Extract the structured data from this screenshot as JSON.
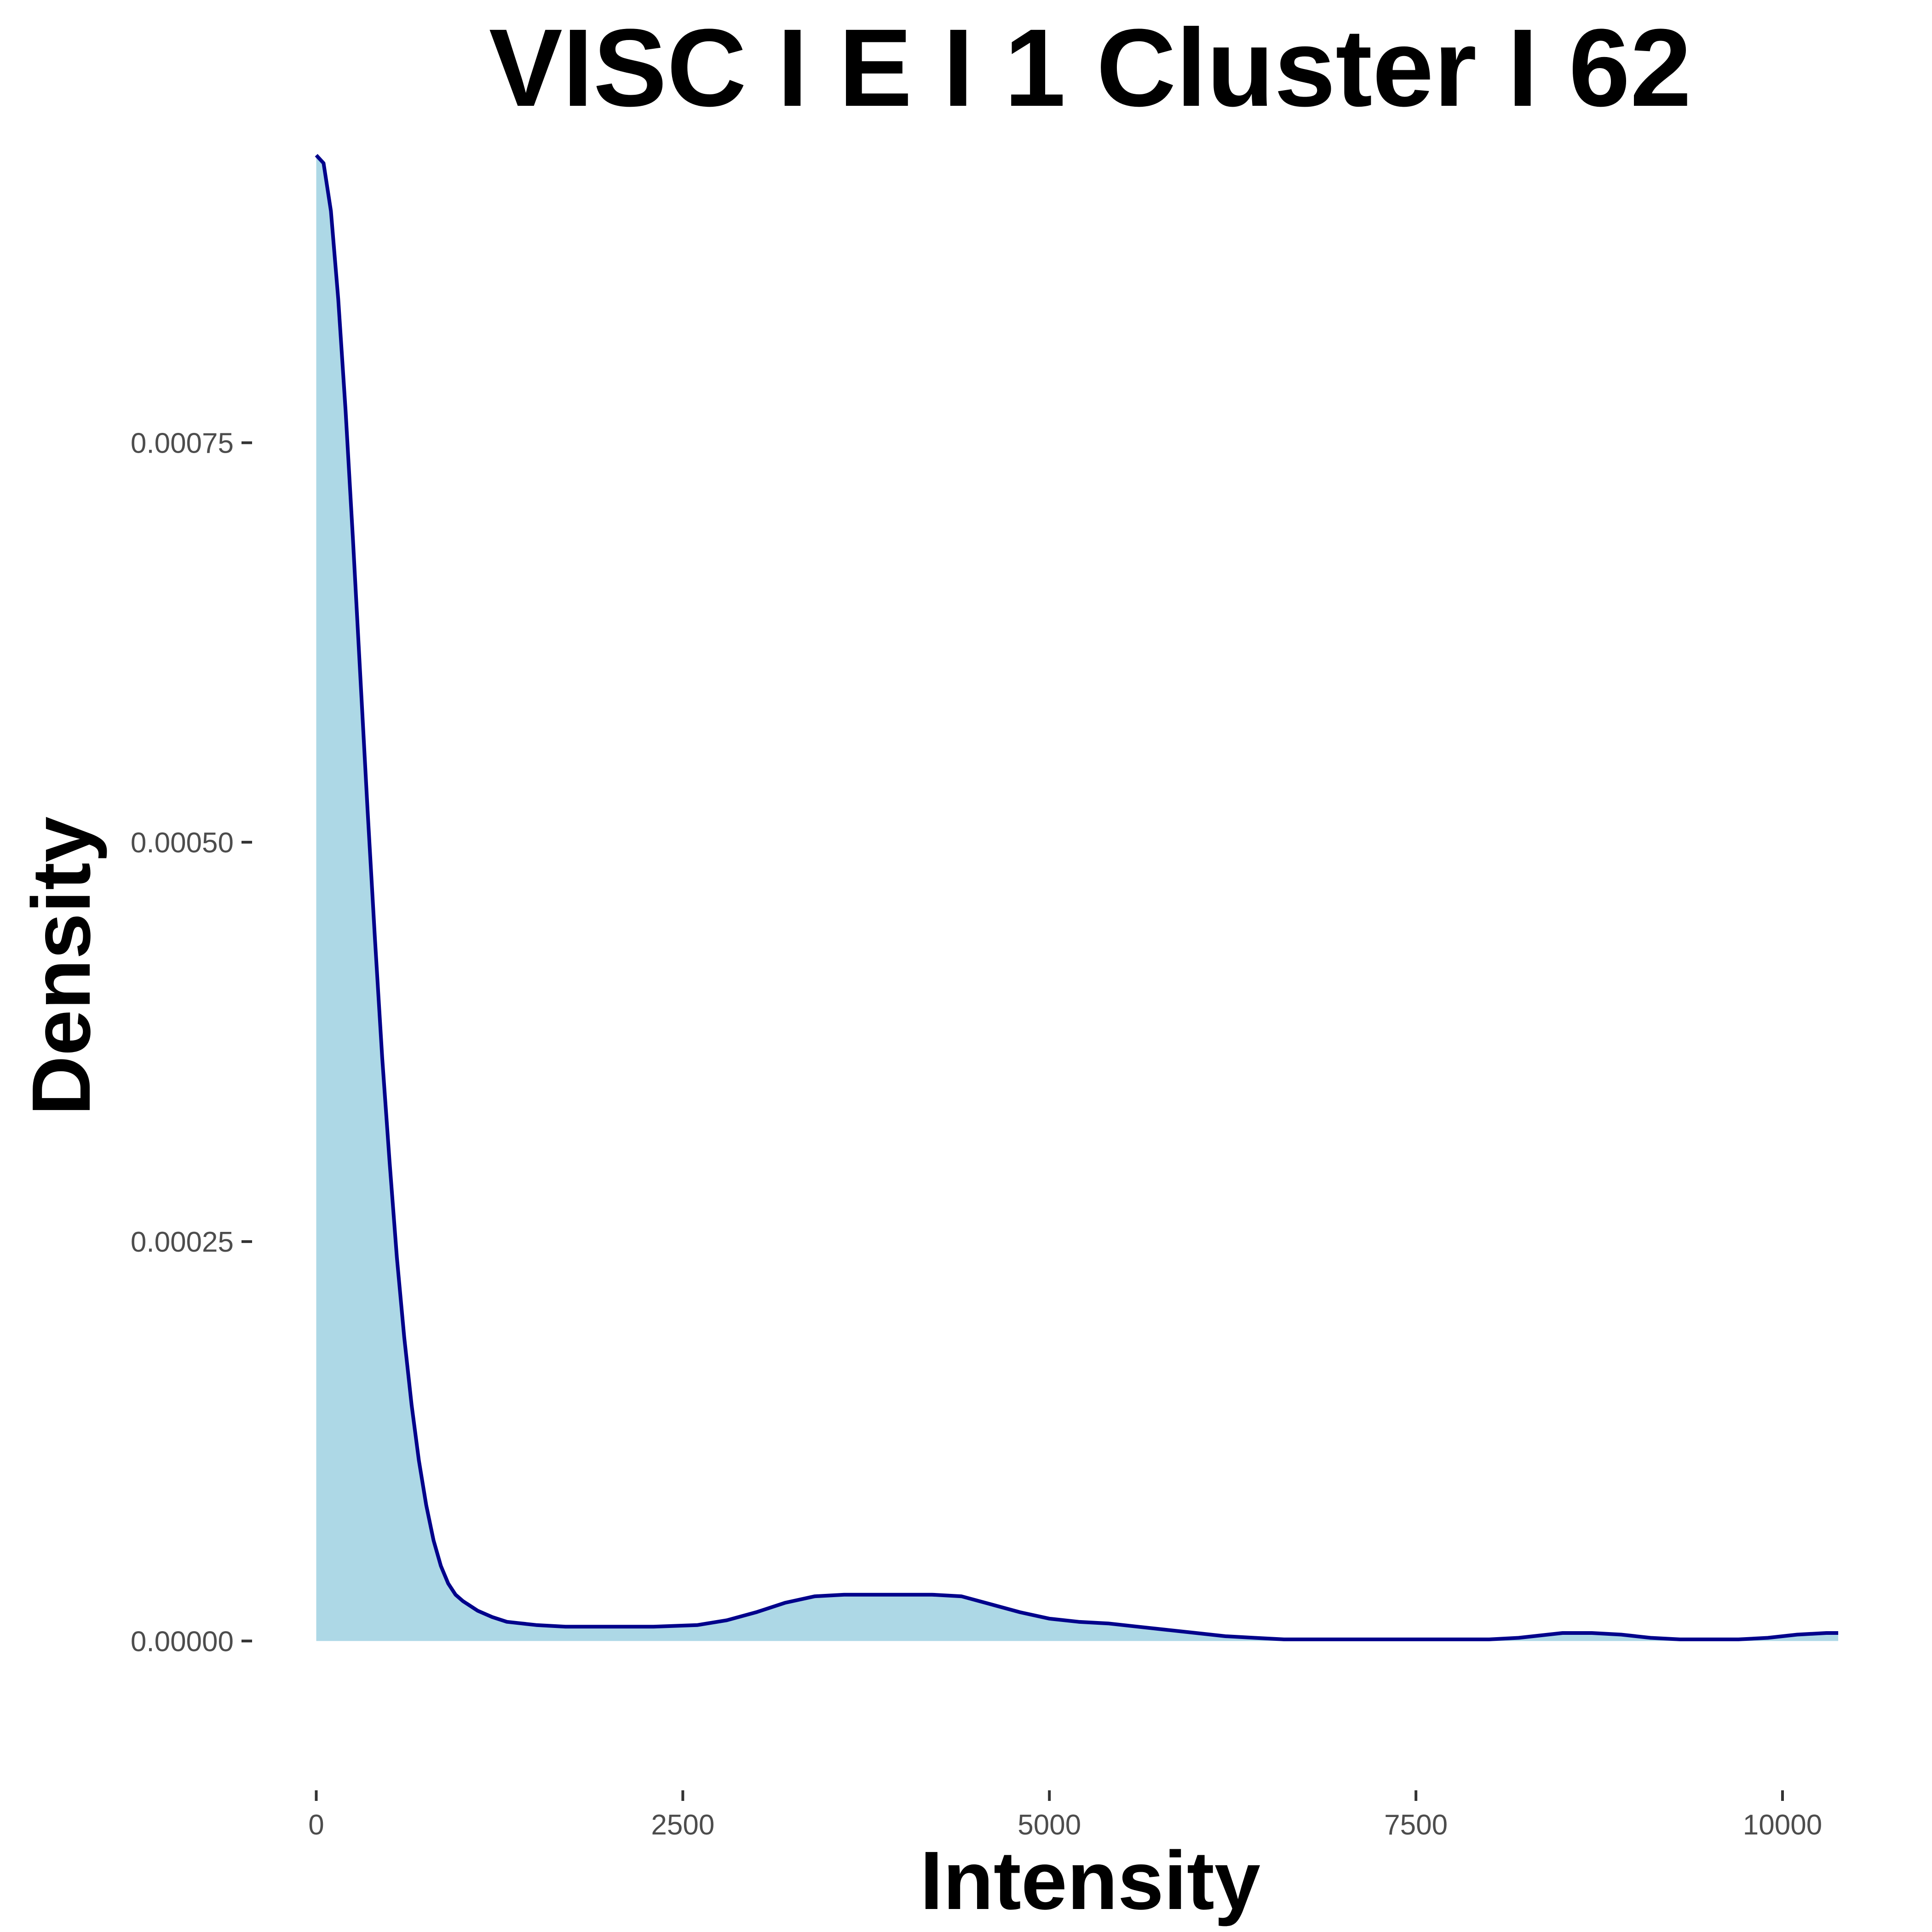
{
  "chart_data": {
    "type": "area",
    "title": "VISC I E I 1 Cluster I  62",
    "xlabel": "Intensity",
    "ylabel": "Density",
    "xlim": [
      -400,
      10800
    ],
    "ylim": [
      -9e-05,
      0.000935
    ],
    "x_ticks": [
      0,
      2500,
      5000,
      7500,
      10000
    ],
    "x_tick_labels": [
      "0",
      "2500",
      "5000",
      "7500",
      "10000"
    ],
    "y_ticks": [
      0,
      0.00025,
      0.0005,
      0.00075
    ],
    "y_tick_labels": [
      "0.00000",
      "0.00025",
      "0.00050",
      "0.00075"
    ],
    "grid": false,
    "legend": "none",
    "fill_color": "#add8e6",
    "line_color": "#00008b",
    "series": [
      {
        "x": [
          0,
          50,
          100,
          150,
          200,
          250,
          300,
          350,
          400,
          450,
          500,
          550,
          600,
          650,
          700,
          750,
          800,
          850,
          900,
          950,
          1000,
          1100,
          1200,
          1300,
          1400,
          1500,
          1700,
          2000,
          2300,
          2600,
          2800,
          3000,
          3200,
          3400,
          3600,
          3800,
          4000,
          4200,
          4400,
          4600,
          4800,
          5000,
          5200,
          5400,
          5600,
          5800,
          6000,
          6200,
          6400,
          6600,
          6800,
          7000,
          7200,
          7400,
          7600,
          7800,
          8000,
          8200,
          8400,
          8500,
          8700,
          8900,
          9100,
          9300,
          9500,
          9700,
          9900,
          10100,
          10300,
          10380
        ],
        "values": [
          0.00093,
          0.000925,
          0.000895,
          0.00084,
          0.00077,
          0.00069,
          0.000605,
          0.00052,
          0.00044,
          0.000365,
          0.0003,
          0.00024,
          0.00019,
          0.000148,
          0.000113,
          8.5e-05,
          6.3e-05,
          4.7e-05,
          3.6e-05,
          2.9e-05,
          2.5e-05,
          1.9e-05,
          1.5e-05,
          1.2e-05,
          1.1e-05,
          1e-05,
          9e-06,
          9e-06,
          9e-06,
          1e-05,
          1.3e-05,
          1.8e-05,
          2.4e-05,
          2.8e-05,
          2.9e-05,
          2.9e-05,
          2.9e-05,
          2.9e-05,
          2.8e-05,
          2.3e-05,
          1.8e-05,
          1.4e-05,
          1.2e-05,
          1.1e-05,
          9e-06,
          7e-06,
          5e-06,
          3e-06,
          2e-06,
          1e-06,
          1e-06,
          1e-06,
          1e-06,
          1e-06,
          1e-06,
          1e-06,
          1e-06,
          2e-06,
          4e-06,
          5e-06,
          5e-06,
          4e-06,
          2e-06,
          1e-06,
          1e-06,
          1e-06,
          2e-06,
          4e-06,
          5e-06,
          5e-06
        ]
      }
    ]
  }
}
